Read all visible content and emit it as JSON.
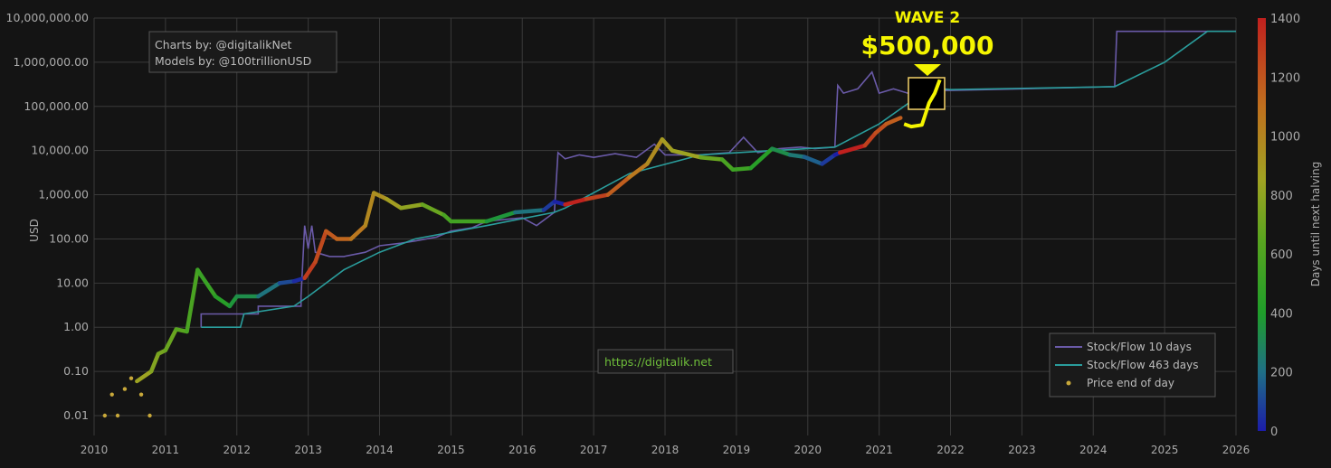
{
  "chart_data": {
    "type": "line",
    "ylabel": "USD",
    "yscale": "log",
    "ylim": [
      0.01,
      10000000
    ],
    "xlim": [
      2010,
      2026
    ],
    "grid": true,
    "x_ticks": [
      "2010",
      "2011",
      "2012",
      "2013",
      "2014",
      "2015",
      "2016",
      "2017",
      "2018",
      "2019",
      "2020",
      "2021",
      "2022",
      "2023",
      "2024",
      "2025",
      "2026"
    ],
    "y_ticks": [
      {
        "v": 10000000,
        "label": "10,000,000.00"
      },
      {
        "v": 1000000,
        "label": "1,000,000.00"
      },
      {
        "v": 100000,
        "label": "100,000.00"
      },
      {
        "v": 10000,
        "label": "10,000.00"
      },
      {
        "v": 1000,
        "label": "1,000.00"
      },
      {
        "v": 100,
        "label": "100.00"
      },
      {
        "v": 10,
        "label": "10.00"
      },
      {
        "v": 1,
        "label": "1.00"
      },
      {
        "v": 0.1,
        "label": "0.10"
      },
      {
        "v": 0.01,
        "label": "0.01"
      }
    ],
    "colorbar": {
      "title": "Days until next halving",
      "range": [
        0,
        1400
      ],
      "ticks": [
        "0",
        "200",
        "400",
        "600",
        "800",
        "1000",
        "1200",
        "1400"
      ],
      "colorscale": [
        [
          0,
          "#1c1ca8"
        ],
        [
          200,
          "#1f6f86"
        ],
        [
          400,
          "#1f9e2a"
        ],
        [
          650,
          "#5aa51f"
        ],
        [
          850,
          "#a0a322"
        ],
        [
          1100,
          "#c0701e"
        ],
        [
          1400,
          "#c0201e"
        ]
      ]
    },
    "legend": {
      "placement": "bottom-right",
      "entries": [
        "Stock/Flow 10 days",
        "Stock/Flow 463 days",
        "Price end of day"
      ]
    },
    "series": [
      {
        "name": "Stock/Flow 10 days",
        "color": "#6a5aa8",
        "points": [
          [
            2011.5,
            1
          ],
          [
            2011.5,
            2
          ],
          [
            2012.3,
            2
          ],
          [
            2012.3,
            3
          ],
          [
            2012.9,
            3
          ],
          [
            2012.9,
            5
          ],
          [
            2012.95,
            200
          ],
          [
            2013.0,
            60
          ],
          [
            2013.05,
            200
          ],
          [
            2013.1,
            50
          ],
          [
            2013.3,
            40
          ],
          [
            2013.5,
            40
          ],
          [
            2013.8,
            50
          ],
          [
            2014.0,
            70
          ],
          [
            2014.3,
            80
          ],
          [
            2014.5,
            90
          ],
          [
            2014.8,
            110
          ],
          [
            2015.0,
            150
          ],
          [
            2015.3,
            180
          ],
          [
            2015.5,
            250
          ],
          [
            2015.8,
            280
          ],
          [
            2016.0,
            300
          ],
          [
            2016.2,
            200
          ],
          [
            2016.45,
            400
          ],
          [
            2016.5,
            9000
          ],
          [
            2016.6,
            6500
          ],
          [
            2016.8,
            8000
          ],
          [
            2017.0,
            7000
          ],
          [
            2017.3,
            8500
          ],
          [
            2017.6,
            7000
          ],
          [
            2017.85,
            14000
          ],
          [
            2018.0,
            8000
          ],
          [
            2018.5,
            8000
          ],
          [
            2018.9,
            9000
          ],
          [
            2019.1,
            20000
          ],
          [
            2019.3,
            9000
          ],
          [
            2019.6,
            11000
          ],
          [
            2019.9,
            12000
          ],
          [
            2020.1,
            11000
          ],
          [
            2020.38,
            12000
          ],
          [
            2020.42,
            300000
          ],
          [
            2020.5,
            200000
          ],
          [
            2020.7,
            250000
          ],
          [
            2020.9,
            600000
          ],
          [
            2021.0,
            200000
          ],
          [
            2021.2,
            250000
          ],
          [
            2021.4,
            200000
          ],
          [
            2021.6,
            230000
          ],
          [
            2022.0,
            230000
          ],
          [
            2023.0,
            250000
          ],
          [
            2024.3,
            280000
          ],
          [
            2024.33,
            5000000
          ],
          [
            2026.0,
            5000000
          ]
        ]
      },
      {
        "name": "Stock/Flow 463 days",
        "color": "#2a9d9c",
        "points": [
          [
            2011.5,
            1
          ],
          [
            2012.05,
            1
          ],
          [
            2012.1,
            2
          ],
          [
            2012.8,
            3
          ],
          [
            2013.0,
            5
          ],
          [
            2013.5,
            20
          ],
          [
            2014.0,
            50
          ],
          [
            2014.5,
            100
          ],
          [
            2015.5,
            200
          ],
          [
            2016.45,
            400
          ],
          [
            2016.6,
            500
          ],
          [
            2017.5,
            3000
          ],
          [
            2018.5,
            8000
          ],
          [
            2019.5,
            10000
          ],
          [
            2020.38,
            12000
          ],
          [
            2021.0,
            40000
          ],
          [
            2021.5,
            150000
          ],
          [
            2021.9,
            250000
          ],
          [
            2022.0,
            240000
          ],
          [
            2024.3,
            280000
          ],
          [
            2025.0,
            1000000
          ],
          [
            2025.6,
            5000000
          ],
          [
            2026.0,
            5000000
          ]
        ]
      },
      {
        "name": "Price end of day",
        "color": "#c8a83a",
        "dots": [
          [
            2010.15,
            0.01,
            900
          ],
          [
            2010.25,
            0.03,
            900
          ],
          [
            2010.33,
            0.01,
            900
          ],
          [
            2010.43,
            0.04,
            880
          ],
          [
            2010.52,
            0.07,
            860
          ],
          [
            2010.66,
            0.03,
            820
          ],
          [
            2010.78,
            0.01,
            780
          ]
        ],
        "points": [
          [
            2010.6,
            0.06,
            840
          ],
          [
            2010.8,
            0.1,
            767
          ],
          [
            2010.9,
            0.25,
            730
          ],
          [
            2011.0,
            0.3,
            694
          ],
          [
            2011.15,
            0.9,
            639
          ],
          [
            2011.3,
            0.8,
            584
          ],
          [
            2011.45,
            20,
            529
          ],
          [
            2011.5,
            15,
            511
          ],
          [
            2011.7,
            5,
            438
          ],
          [
            2011.9,
            3,
            365
          ],
          [
            2012.0,
            5,
            329
          ],
          [
            2012.3,
            5,
            219
          ],
          [
            2012.6,
            10,
            110
          ],
          [
            2012.8,
            11,
            37
          ],
          [
            2012.95,
            13,
            1296
          ],
          [
            2013.1,
            30,
            1241
          ],
          [
            2013.25,
            150,
            1186
          ],
          [
            2013.4,
            100,
            1132
          ],
          [
            2013.6,
            100,
            1059
          ],
          [
            2013.8,
            200,
            986
          ],
          [
            2013.92,
            1100,
            942
          ],
          [
            2014.1,
            800,
            876
          ],
          [
            2014.3,
            500,
            803
          ],
          [
            2014.6,
            600,
            694
          ],
          [
            2014.9,
            350,
            584
          ],
          [
            2015.0,
            250,
            548
          ],
          [
            2015.5,
            250,
            365
          ],
          [
            2015.9,
            400,
            219
          ],
          [
            2016.3,
            450,
            73
          ],
          [
            2016.45,
            700,
            18
          ],
          [
            2016.6,
            600,
            1387
          ],
          [
            2016.9,
            800,
            1278
          ],
          [
            2017.2,
            1000,
            1168
          ],
          [
            2017.5,
            2500,
            1058
          ],
          [
            2017.75,
            5000,
            967
          ],
          [
            2017.96,
            18000,
            891
          ],
          [
            2018.1,
            10000,
            840
          ],
          [
            2018.5,
            7000,
            694
          ],
          [
            2018.8,
            6300,
            584
          ],
          [
            2018.95,
            3700,
            529
          ],
          [
            2019.2,
            4000,
            438
          ],
          [
            2019.5,
            11000,
            329
          ],
          [
            2019.75,
            8000,
            237
          ],
          [
            2019.95,
            7200,
            164
          ],
          [
            2020.2,
            5000,
            73
          ],
          [
            2020.38,
            8000,
            7
          ],
          [
            2020.45,
            9000,
            1400
          ],
          [
            2020.8,
            13000,
            1278
          ],
          [
            2020.95,
            25000,
            1223
          ],
          [
            2021.1,
            40000,
            1168
          ],
          [
            2021.3,
            55000,
            1095
          ]
        ]
      },
      {
        "name": "Wave 2 projection",
        "color": "#f5f500",
        "points": [
          [
            2021.35,
            40000
          ],
          [
            2021.45,
            35000
          ],
          [
            2021.6,
            38000
          ],
          [
            2021.7,
            120000
          ],
          [
            2021.78,
            200000
          ],
          [
            2021.85,
            400000
          ]
        ]
      }
    ],
    "annotations": {
      "credits_line1": "Charts by: @digitalikNet",
      "credits_line2": "Models by: @100trillionUSD",
      "url": "https://digitalik.net",
      "url_color": "#6fbf3a",
      "wave_label": "WAVE 2",
      "wave_price": "$500,000",
      "wave_color": "#f5f500"
    }
  }
}
